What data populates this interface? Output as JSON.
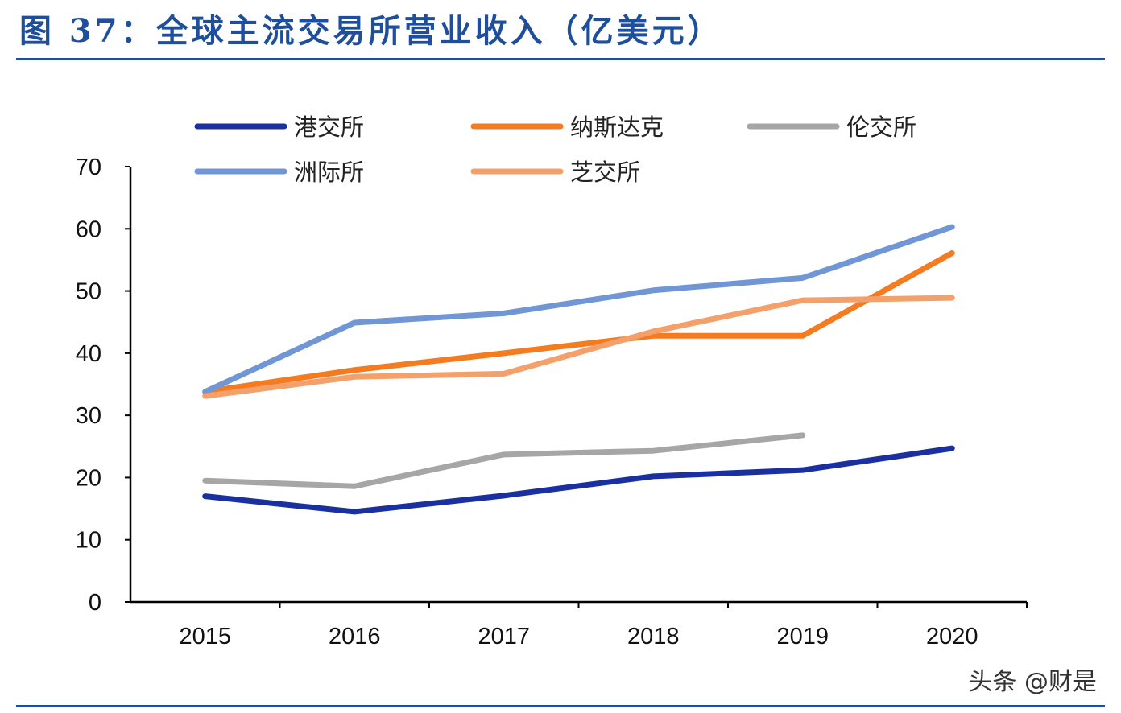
{
  "title": "图 37：全球主流交易所营业收入（亿美元）",
  "watermark": "头条 @财是",
  "chart_data": {
    "type": "line",
    "title": "图 37：全球主流交易所营业收入（亿美元）",
    "xlabel": "",
    "ylabel": "",
    "categories": [
      "2015",
      "2016",
      "2017",
      "2018",
      "2019",
      "2020"
    ],
    "ylim": [
      0,
      70
    ],
    "yticks": [
      "0",
      "10",
      "20",
      "30",
      "40",
      "50",
      "60",
      "70"
    ],
    "grid": false,
    "legend_position": "top",
    "series": [
      {
        "name": "港交所",
        "color": "#1a2fa0",
        "values": [
          17.0,
          14.5,
          17.1,
          20.2,
          21.2,
          24.7
        ]
      },
      {
        "name": "纳斯达克",
        "color": "#f47b20",
        "values": [
          33.8,
          37.3,
          40.0,
          42.8,
          42.8,
          56.1
        ]
      },
      {
        "name": "伦交所",
        "color": "#a6a6a6",
        "values": [
          19.5,
          18.6,
          23.7,
          24.3,
          26.8,
          null
        ]
      },
      {
        "name": "洲际所",
        "color": "#7096d6",
        "values": [
          33.8,
          44.9,
          46.4,
          50.1,
          52.1,
          60.3
        ]
      },
      {
        "name": "芝交所",
        "color": "#f4a06a",
        "values": [
          33.1,
          36.2,
          36.7,
          43.5,
          48.5,
          48.9
        ]
      }
    ]
  }
}
